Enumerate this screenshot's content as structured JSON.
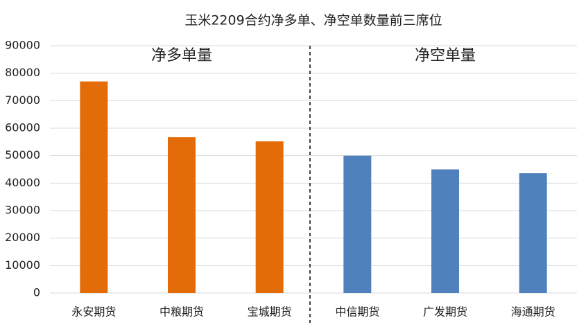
{
  "chart_data": {
    "type": "bar",
    "title": "玉米2209合约净多单、净空单数量前三席位",
    "annotations": [
      "净多单量",
      "净空单量"
    ],
    "categories": [
      "永安期货",
      "中粮期货",
      "宝城期货",
      "中信期货",
      "广发期货",
      "海通期货"
    ],
    "values": [
      77000,
      56700,
      55200,
      50000,
      45000,
      43600
    ],
    "colors": [
      "#e36c09",
      "#e36c09",
      "#e36c09",
      "#4f81bd",
      "#4f81bd",
      "#4f81bd"
    ],
    "ylim": [
      0,
      90000
    ],
    "yticks": [
      0,
      10000,
      20000,
      30000,
      40000,
      50000,
      60000,
      70000,
      80000,
      90000
    ],
    "grid": true
  }
}
